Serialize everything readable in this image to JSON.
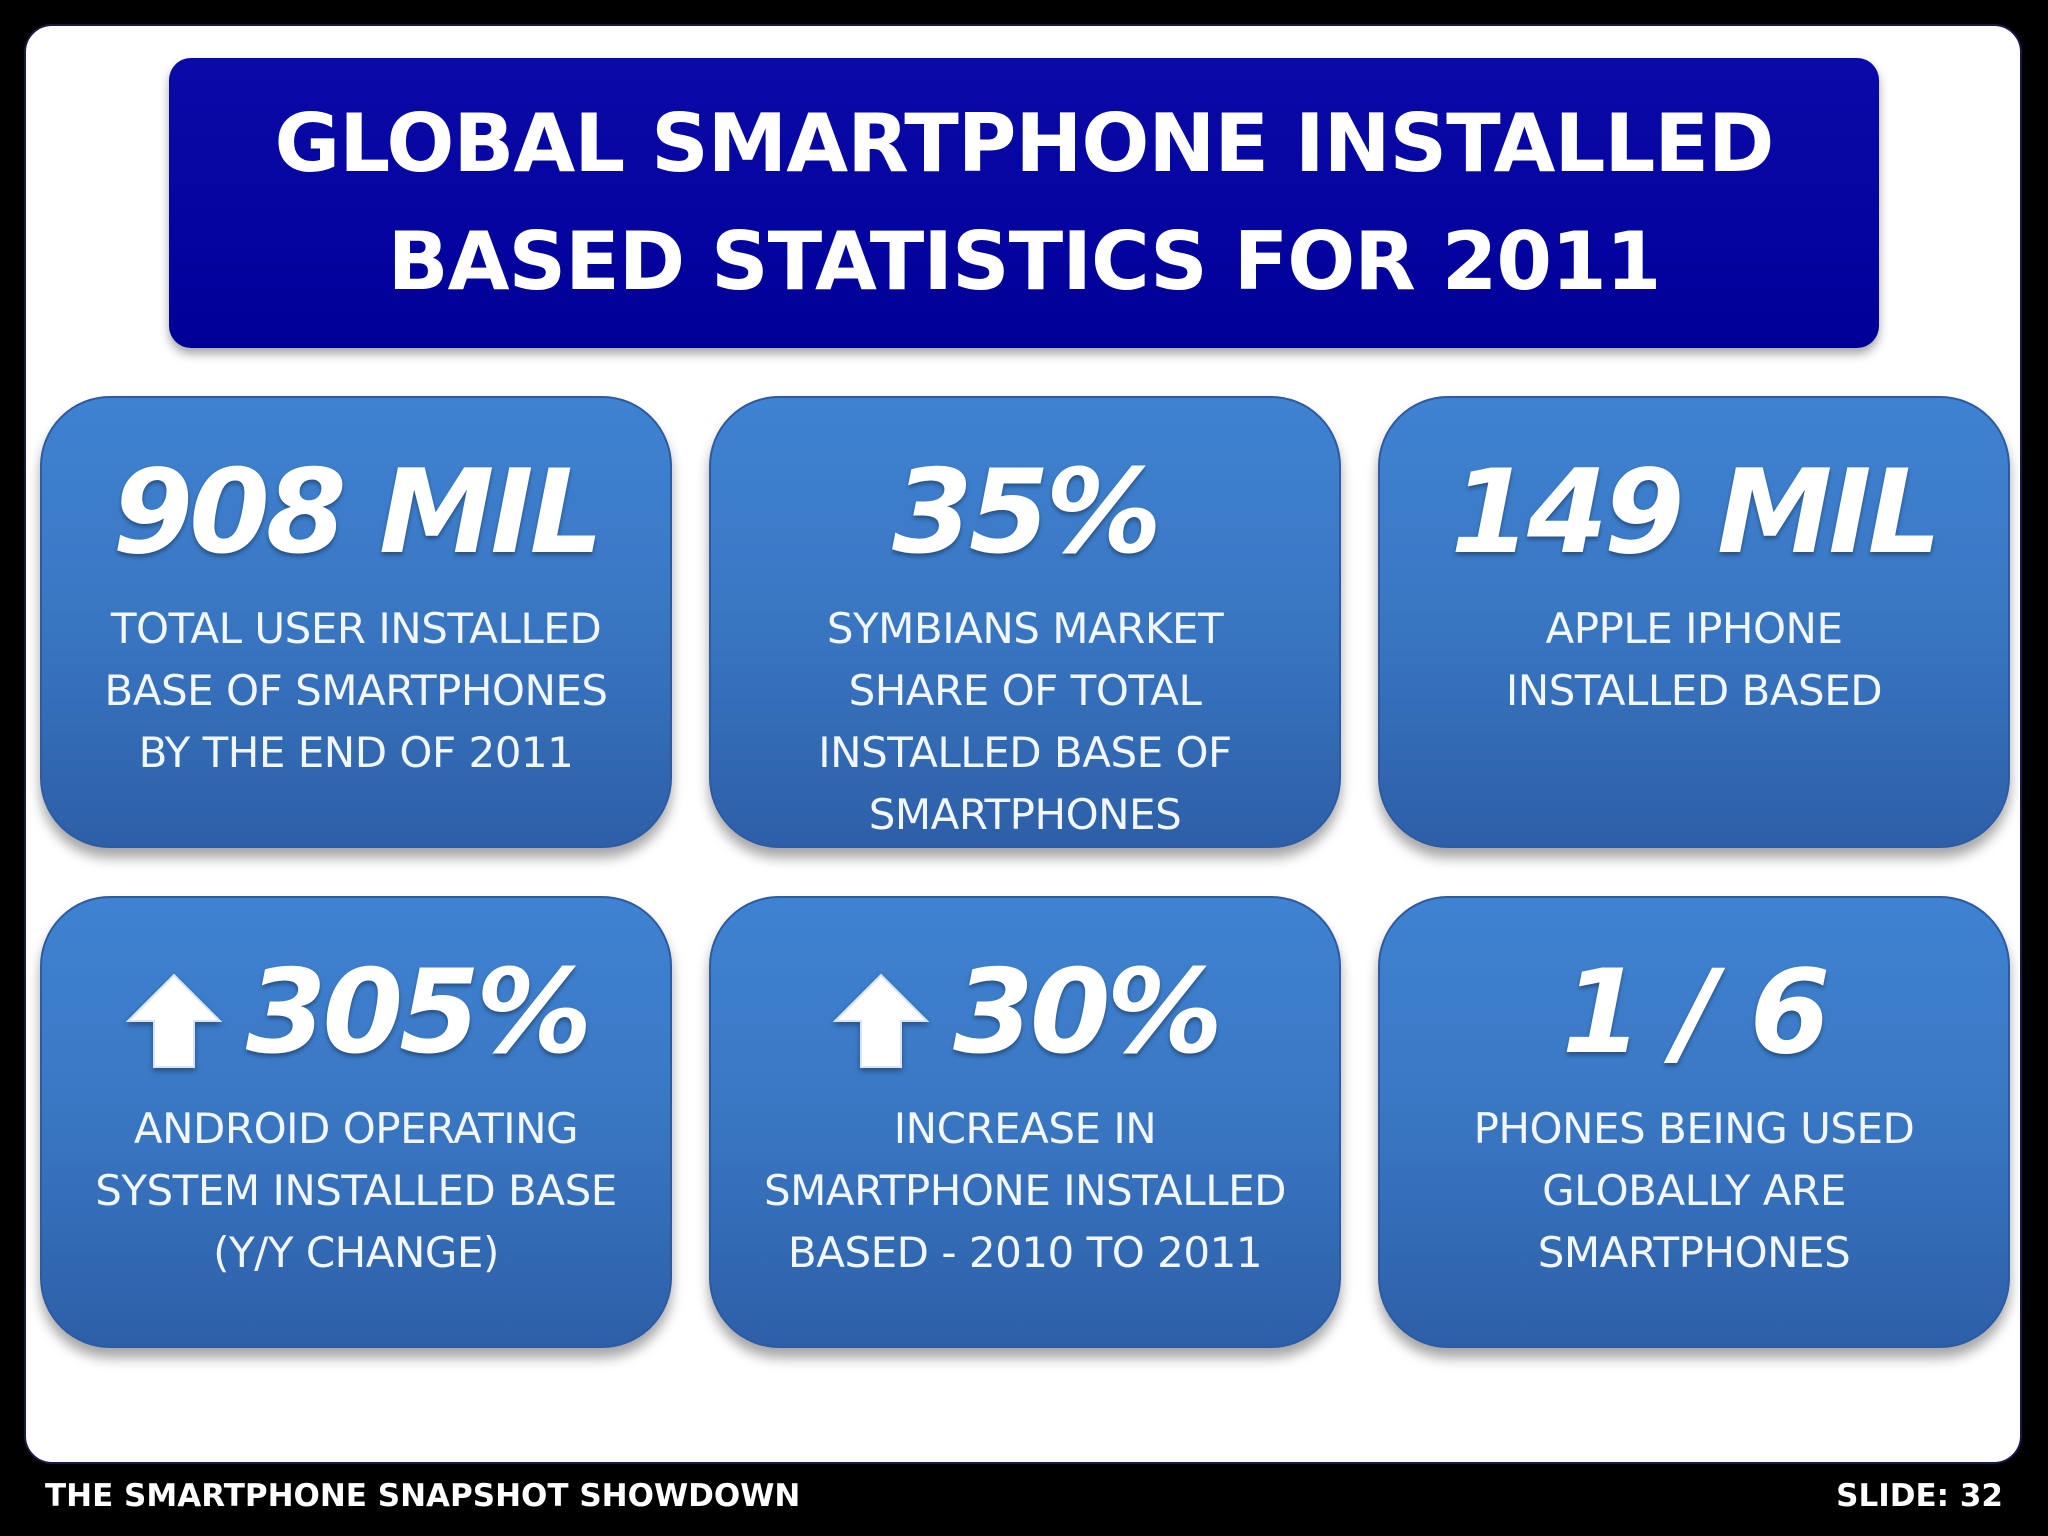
{
  "title": "GLOBAL SMARTPHONE INSTALLED\nBASED STATISTICS FOR 2011",
  "cards": [
    {
      "value": "908 MIL",
      "description": "TOTAL USER INSTALLED\nBASE OF SMARTPHONES\nBY THE END OF 2011",
      "icon": null
    },
    {
      "value": "35%",
      "description": "SYMBIANS MARKET\nSHARE OF TOTAL\nINSTALLED BASE OF\nSMARTPHONES",
      "icon": null
    },
    {
      "value": "149 MIL",
      "description": "APPLE IPHONE\nINSTALLED BASED",
      "icon": null
    },
    {
      "value": "305%",
      "description": "ANDROID OPERATING\nSYSTEM INSTALLED BASE\n(Y/Y CHANGE)",
      "icon": "up-arrow-icon"
    },
    {
      "value": "30%",
      "description": "INCREASE IN\nSMARTPHONE INSTALLED\nBASED - 2010 TO 2011",
      "icon": "up-arrow-icon"
    },
    {
      "value": "1 / 6",
      "description": "PHONES BEING USED\nGLOBALLY ARE\nSMARTPHONES",
      "icon": null
    }
  ],
  "footer": {
    "left": "THE SMARTPHONE SNAPSHOT SHOWDOWN",
    "right": "SLIDE: 32"
  },
  "colors": {
    "title_background": "#000098",
    "card_top": "#3f82d2",
    "card_bottom": "#2d5fa8",
    "text": "#ffffff",
    "frame": "#000000"
  }
}
